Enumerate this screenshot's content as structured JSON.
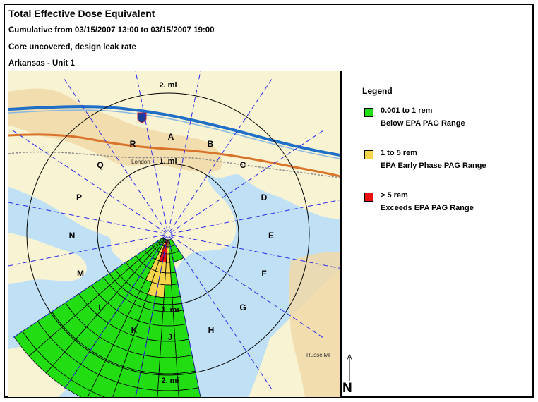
{
  "header": {
    "title": "Total Effective Dose Equivalent",
    "period": "Cumulative from 03/15/2007 13:00 to 03/15/2007 19:00",
    "scenario": "Core uncovered, design leak rate",
    "site": "Arkansas - Unit 1"
  },
  "map": {
    "ring_labels": [
      "2. mi",
      "1. mi",
      "1. mi",
      "2. mi"
    ],
    "sector_labels": [
      "A",
      "B",
      "C",
      "D",
      "E",
      "F",
      "G",
      "H",
      "J",
      "K",
      "L",
      "M",
      "N",
      "P",
      "Q",
      "R"
    ],
    "place_labels": [
      "London",
      "Russellvil"
    ],
    "highway_shield": "40"
  },
  "legend": {
    "title": "Legend",
    "items": [
      {
        "label": "0.001 to 1 rem",
        "description": "Below EPA PAG Range",
        "color": "#22dd11"
      },
      {
        "label": "1 to 5 rem",
        "description": "EPA Early Phase PAG Range",
        "color": "#f5d64a"
      },
      {
        "label": "> 5 rem",
        "description": "Exceeds EPA PAG Range",
        "color": "#e81010"
      }
    ]
  },
  "compass": {
    "label": "N"
  },
  "colors": {
    "water": "#bfe0f5",
    "land": "#f8f3d2",
    "town": "#f0d8a8",
    "plume": "#22dd11",
    "ring": "#000000",
    "sector_line": "#2a2aee"
  }
}
